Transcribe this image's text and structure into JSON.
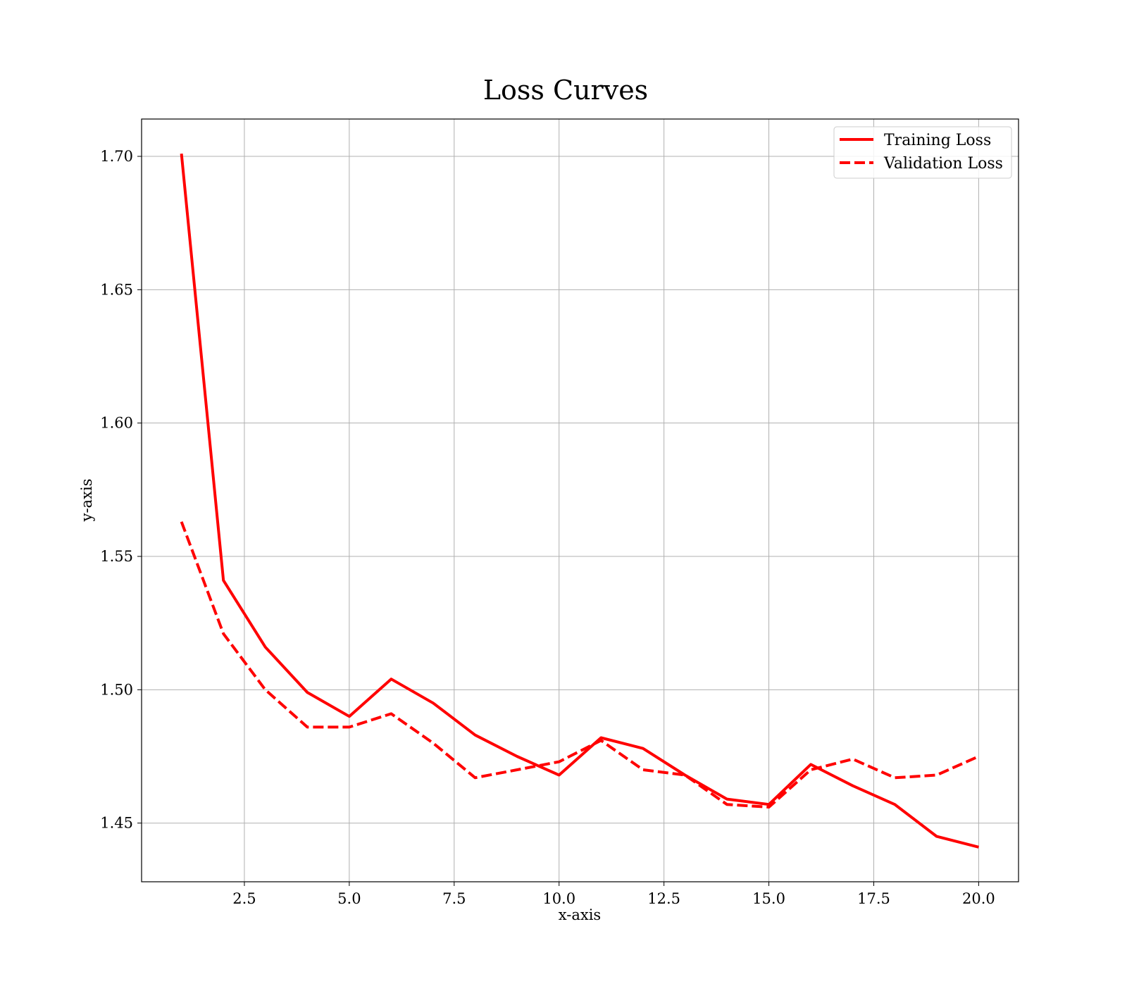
{
  "chart_data": {
    "type": "line",
    "title": "Loss Curves",
    "xlabel": "x-axis",
    "ylabel": "y-axis",
    "xlim": [
      0.05,
      20.95
    ],
    "ylim": [
      1.428,
      1.714
    ],
    "x_ticks": [
      2.5,
      5.0,
      7.5,
      10.0,
      12.5,
      15.0,
      17.5,
      20.0
    ],
    "x_tick_labels": [
      "2.5",
      "5.0",
      "7.5",
      "10.0",
      "12.5",
      "15.0",
      "17.5",
      "20.0"
    ],
    "y_ticks": [
      1.45,
      1.5,
      1.55,
      1.6,
      1.65,
      1.7
    ],
    "y_tick_labels": [
      "1.45",
      "1.50",
      "1.55",
      "1.60",
      "1.65",
      "1.70"
    ],
    "grid": true,
    "legend_position": "top-right",
    "x": [
      1,
      2,
      3,
      4,
      5,
      6,
      7,
      8,
      9,
      10,
      11,
      12,
      13,
      14,
      15,
      16,
      17,
      18,
      19,
      20
    ],
    "series": [
      {
        "name": "Training Loss",
        "style": "solid",
        "color": "#ff0000",
        "values": [
          1.701,
          1.541,
          1.516,
          1.499,
          1.49,
          1.504,
          1.495,
          1.483,
          1.475,
          1.468,
          1.482,
          1.478,
          1.468,
          1.459,
          1.457,
          1.472,
          1.464,
          1.457,
          1.445,
          1.441
        ]
      },
      {
        "name": "Validation Loss",
        "style": "dashed",
        "color": "#ff0000",
        "values": [
          1.563,
          1.521,
          1.5,
          1.486,
          1.486,
          1.491,
          1.48,
          1.467,
          1.47,
          1.473,
          1.481,
          1.47,
          1.468,
          1.457,
          1.456,
          1.47,
          1.474,
          1.467,
          1.468,
          1.475
        ]
      }
    ]
  }
}
